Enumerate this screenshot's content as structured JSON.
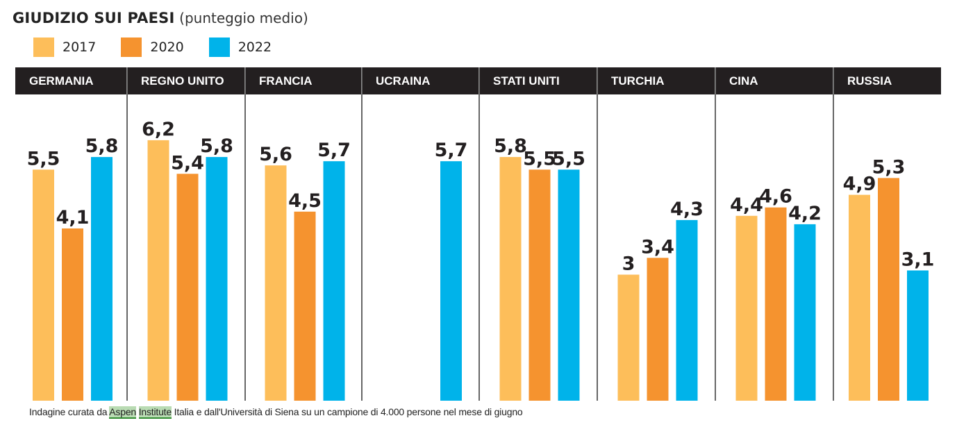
{
  "chart_data": {
    "type": "bar",
    "title": "GIUDIZIO SUI PAESI",
    "subtitle": "(punteggio medio)",
    "categories": [
      "GERMANIA",
      "REGNO UNITO",
      "FRANCIA",
      "UCRAINA",
      "STATI UNITI",
      "TURCHIA",
      "CINA",
      "RUSSIA"
    ],
    "series": [
      {
        "name": "2017",
        "color": "#fdbe5a",
        "values": [
          5.5,
          6.2,
          5.6,
          null,
          5.8,
          3,
          4.4,
          4.9
        ]
      },
      {
        "name": "2020",
        "color": "#f5932f",
        "values": [
          4.1,
          5.4,
          4.5,
          null,
          5.5,
          3.4,
          4.6,
          5.3
        ]
      },
      {
        "name": "2022",
        "color": "#00b3ea",
        "values": [
          5.8,
          5.8,
          5.7,
          5.7,
          5.5,
          4.3,
          4.2,
          3.1
        ]
      }
    ],
    "labels": [
      [
        "5,5",
        "6,2",
        "5,6",
        null,
        "5,8",
        "3",
        "4,4",
        "4,9"
      ],
      [
        "4,1",
        "5,4",
        "4,5",
        null,
        "5,5",
        "3,4",
        "4,6",
        "5,3"
      ],
      [
        "5,8",
        "5,8",
        "5,7",
        "5,7",
        "5,5",
        "4,3",
        "4,2",
        "3,1"
      ]
    ],
    "xlabel": "",
    "ylabel": "",
    "ylim": [
      0,
      7
    ],
    "grid": false,
    "legend_position": "top-left"
  },
  "footer": {
    "prefix": "Indagine curata da ",
    "highlight1": "Aspen",
    "space": " ",
    "highlight2": "Institute",
    "suffix": " Italia e dall'Università di Siena su un campione di 4.000 persone nel mese di giugno"
  }
}
